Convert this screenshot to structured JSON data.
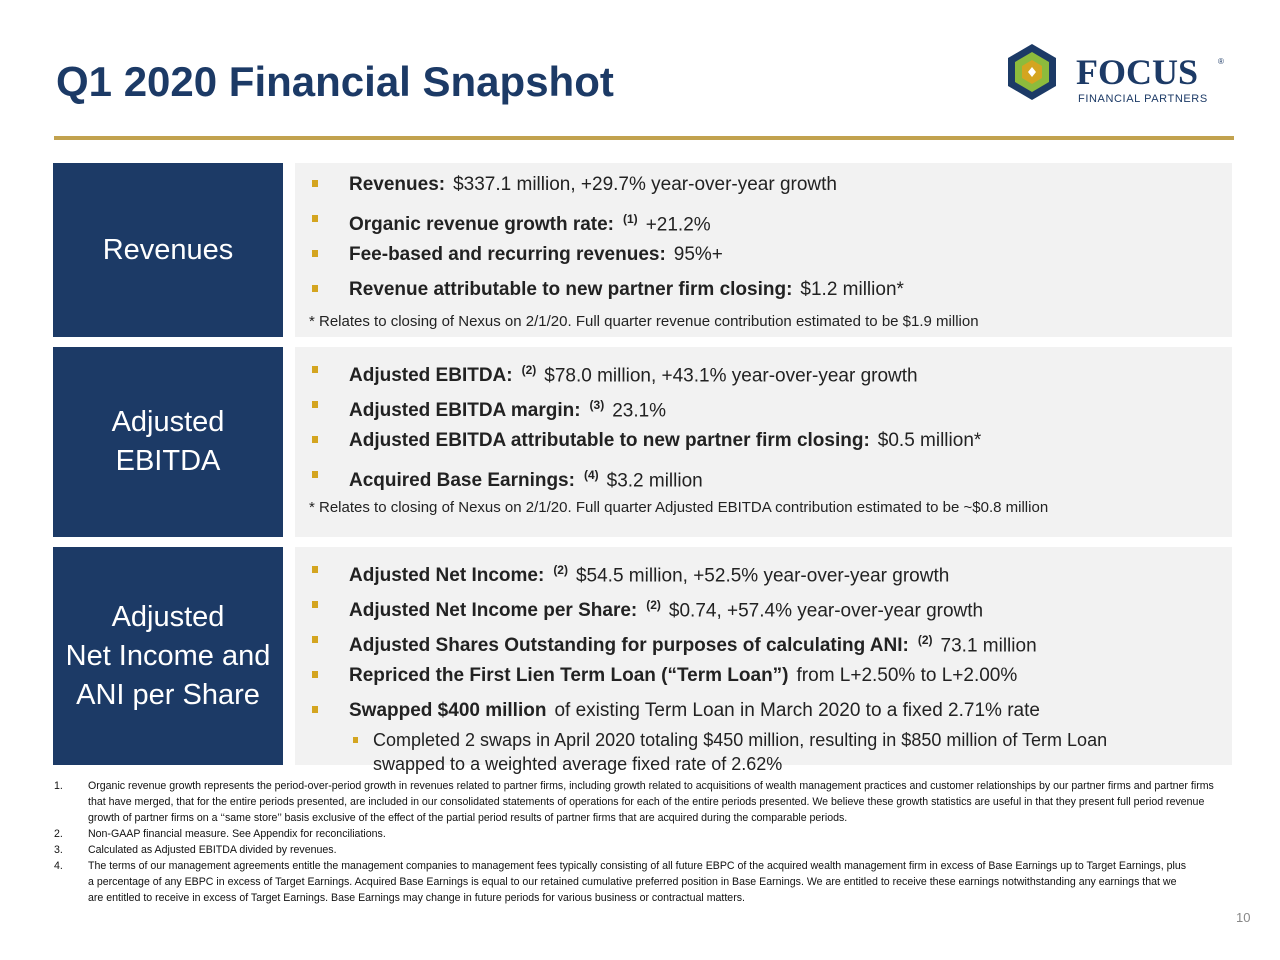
{
  "header": {
    "title": "Q1 2020 Financial Snapshot"
  },
  "logo": {
    "name": "FOCUS",
    "mark": "®",
    "subtitle": "FINANCIAL PARTNERS"
  },
  "sections": [
    {
      "label": [
        "Revenues"
      ],
      "bullets": [
        {
          "bold": "Revenues:",
          "text": "$337.1 million, +29.7% year-over-year growth"
        },
        {
          "bold": "Organic revenue growth rate:",
          "sup": "(1)",
          "text": "+21.2%"
        },
        {
          "bold": "Fee-based and recurring revenues:",
          "text": "95%+"
        },
        {
          "bold": "Revenue attributable to new partner firm closing:",
          "text": "$1.2 million*"
        }
      ],
      "note": "* Relates to closing of Nexus on 2/1/20. Full quarter revenue contribution estimated to be $1.9 million"
    },
    {
      "label": [
        "Adjusted",
        "EBITDA"
      ],
      "bullets": [
        {
          "bold": "Adjusted EBITDA:",
          "sup": "(2)",
          "text": "$78.0 million, +43.1% year-over-year growth"
        },
        {
          "bold": "Adjusted EBITDA margin:",
          "sup": "(3)",
          "text": "23.1%"
        },
        {
          "bold": "Adjusted EBITDA attributable to new partner firm closing:",
          "text": "$0.5 million*"
        },
        {
          "bold": "Acquired Base Earnings:",
          "sup": "(4)",
          "text": "$3.2 million"
        }
      ],
      "note": "* Relates to closing of Nexus on 2/1/20. Full quarter Adjusted EBITDA contribution estimated to be ~$0.8 million"
    },
    {
      "label": [
        "Adjusted",
        "Net Income and",
        "ANI per Share"
      ],
      "bullets": [
        {
          "bold": "Adjusted Net Income:",
          "sup": "(2)",
          "text": "$54.5 million, +52.5% year-over-year growth"
        },
        {
          "bold": "Adjusted Net Income per Share:",
          "sup": "(2)",
          "text": "$0.74, +57.4% year-over-year growth"
        },
        {
          "bold": "Adjusted Shares Outstanding for purposes of calculating ANI:",
          "sup": "(2)",
          "text": "73.1 million"
        },
        {
          "bold": "Repriced the First Lien Term Loan (“Term Loan”)",
          "text": "from L+2.50% to L+2.00%"
        },
        {
          "bold": "Swapped $400 million",
          "text": "of existing Term Loan in March 2020 to a fixed 2.71% rate"
        }
      ],
      "sub_bullets": [
        "Completed 2 swaps in April 2020 totaling $450 million, resulting in $850 million of Term Loan swapped to a weighted average fixed rate of 2.62%"
      ]
    }
  ],
  "footnotes": [
    {
      "number": "1.",
      "text": "Organic revenue growth represents the period-over-period growth in revenues related to partner firms, including growth related to acquisitions of wealth management practices and customer relationships by our partner firms and partner firms that have merged, that for the entire periods presented, are included in our consolidated statements of operations for each of the entire periods presented. We believe these growth statistics are useful in that they present full period revenue growth of partner firms on a ‘‘same store’’ basis exclusive of the effect of the partial period results of partner firms that are acquired during the comparable periods."
    },
    {
      "number": "2.",
      "text": "Non-GAAP financial measure. See Appendix for reconciliations."
    },
    {
      "number": "3.",
      "text": "Calculated as Adjusted EBITDA divided by revenues."
    },
    {
      "number": "4.",
      "text": "The terms of our management agreements entitle the management companies to management fees typically consisting of all future EBPC of the acquired wealth management firm in excess of Base Earnings up to Target Earnings, plus a percentage of any EBPC in excess of Target Earnings. Acquired Base Earnings is equal to our retained cumulative preferred position in Base Earnings. We are entitled to receive these earnings notwithstanding any earnings that we are entitled to receive in excess of Target Earnings. Base Earnings may change in future periods for various business or contractual matters."
    }
  ],
  "page_number": "10"
}
